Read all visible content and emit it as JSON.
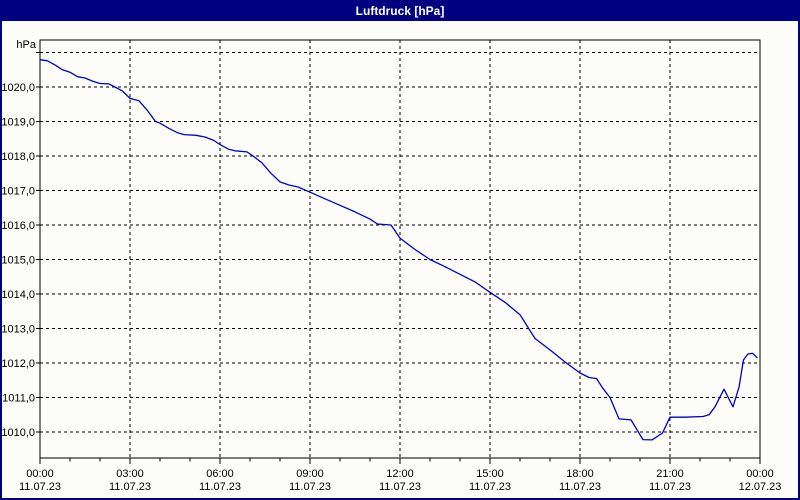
{
  "window": {
    "title": "Luftdruck [hPa]",
    "titlebar_color": "#000080",
    "border_color": "#000080",
    "background_color": "#fcfdf8"
  },
  "chart_data": {
    "type": "line",
    "title": "Luftdruck [hPa]",
    "series_name": "Luftdruck",
    "ylabel": "hPa",
    "xlabel": "",
    "grid": true,
    "line_color": "#0000c8",
    "grid_color": "#000000",
    "ylim": [
      1009.3,
      1021.4
    ],
    "xlim_hours": [
      0,
      24
    ],
    "y_ticks": [
      {
        "value": 1021,
        "label": ""
      },
      {
        "value": 1020,
        "label": "1020,0"
      },
      {
        "value": 1019,
        "label": "1019,0"
      },
      {
        "value": 1018,
        "label": "1018,0"
      },
      {
        "value": 1017,
        "label": "1017,0"
      },
      {
        "value": 1016,
        "label": "1016,0"
      },
      {
        "value": 1015,
        "label": "1015,0"
      },
      {
        "value": 1014,
        "label": "1014,0"
      },
      {
        "value": 1013,
        "label": "1013,0"
      },
      {
        "value": 1012,
        "label": "1012,0"
      },
      {
        "value": 1011,
        "label": "1011,0"
      },
      {
        "value": 1010,
        "label": "1010,0"
      }
    ],
    "x_ticks": [
      {
        "hour": 0,
        "time": "00:00",
        "date": "11.07.23"
      },
      {
        "hour": 3,
        "time": "03:00",
        "date": "11.07.23"
      },
      {
        "hour": 6,
        "time": "06:00",
        "date": "11.07.23"
      },
      {
        "hour": 9,
        "time": "09:00",
        "date": "11.07.23"
      },
      {
        "hour": 12,
        "time": "12:00",
        "date": "11.07.23"
      },
      {
        "hour": 15,
        "time": "15:00",
        "date": "11.07.23"
      },
      {
        "hour": 18,
        "time": "18:00",
        "date": "11.07.23"
      },
      {
        "hour": 21,
        "time": "21:00",
        "date": "11.07.23"
      },
      {
        "hour": 24,
        "time": "00:00",
        "date": "12.07.23"
      }
    ],
    "minor_tick_every_hours": 1,
    "points": [
      [
        0.0,
        1020.79
      ],
      [
        0.25,
        1020.76
      ],
      [
        0.5,
        1020.64
      ],
      [
        0.75,
        1020.5
      ],
      [
        1.0,
        1020.43
      ],
      [
        1.25,
        1020.3
      ],
      [
        1.5,
        1020.26
      ],
      [
        1.75,
        1020.17
      ],
      [
        2.0,
        1020.1
      ],
      [
        2.3,
        1020.09
      ],
      [
        2.5,
        1020.0
      ],
      [
        2.75,
        1019.88
      ],
      [
        3.0,
        1019.67
      ],
      [
        3.3,
        1019.6
      ],
      [
        3.6,
        1019.3
      ],
      [
        3.85,
        1019.0
      ],
      [
        4.0,
        1018.95
      ],
      [
        4.3,
        1018.8
      ],
      [
        4.6,
        1018.67
      ],
      [
        4.8,
        1018.62
      ],
      [
        5.2,
        1018.6
      ],
      [
        5.5,
        1018.55
      ],
      [
        5.8,
        1018.45
      ],
      [
        6.0,
        1018.33
      ],
      [
        6.3,
        1018.19
      ],
      [
        6.5,
        1018.15
      ],
      [
        6.9,
        1018.12
      ],
      [
        7.1,
        1018.0
      ],
      [
        7.4,
        1017.8
      ],
      [
        7.7,
        1017.5
      ],
      [
        8.0,
        1017.25
      ],
      [
        8.3,
        1017.16
      ],
      [
        8.6,
        1017.1
      ],
      [
        9.0,
        1016.95
      ],
      [
        9.5,
        1016.76
      ],
      [
        10.0,
        1016.57
      ],
      [
        10.5,
        1016.38
      ],
      [
        11.0,
        1016.17
      ],
      [
        11.25,
        1016.03
      ],
      [
        11.7,
        1016.0
      ],
      [
        12.0,
        1015.62
      ],
      [
        12.5,
        1015.29
      ],
      [
        13.0,
        1015.0
      ],
      [
        13.5,
        1014.79
      ],
      [
        14.0,
        1014.57
      ],
      [
        14.5,
        1014.35
      ],
      [
        15.0,
        1014.05
      ],
      [
        15.5,
        1013.76
      ],
      [
        16.0,
        1013.4
      ],
      [
        16.5,
        1012.71
      ],
      [
        17.0,
        1012.38
      ],
      [
        17.5,
        1012.03
      ],
      [
        18.0,
        1011.71
      ],
      [
        18.3,
        1011.58
      ],
      [
        18.55,
        1011.55
      ],
      [
        18.75,
        1011.28
      ],
      [
        19.0,
        1011.0
      ],
      [
        19.3,
        1010.38
      ],
      [
        19.7,
        1010.35
      ],
      [
        20.1,
        1009.78
      ],
      [
        20.4,
        1009.77
      ],
      [
        20.75,
        1009.97
      ],
      [
        21.0,
        1010.43
      ],
      [
        21.5,
        1010.43
      ],
      [
        22.1,
        1010.45
      ],
      [
        22.3,
        1010.5
      ],
      [
        22.5,
        1010.73
      ],
      [
        22.8,
        1011.24
      ],
      [
        23.1,
        1010.73
      ],
      [
        23.3,
        1011.3
      ],
      [
        23.45,
        1012.09
      ],
      [
        23.6,
        1012.26
      ],
      [
        23.75,
        1012.28
      ],
      [
        23.9,
        1012.16
      ]
    ]
  }
}
